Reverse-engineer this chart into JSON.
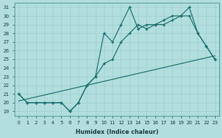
{
  "xlabel": "Humidex (Indice chaleur)",
  "bg_color": "#b2dede",
  "line_color": "#1a6e6e",
  "xlim": [
    -0.5,
    23.5
  ],
  "ylim": [
    18.5,
    31.5
  ],
  "xticks": [
    0,
    1,
    2,
    3,
    4,
    5,
    6,
    7,
    8,
    9,
    10,
    11,
    12,
    13,
    14,
    15,
    16,
    17,
    18,
    19,
    20,
    21,
    22,
    23
  ],
  "yticks": [
    19,
    20,
    21,
    22,
    23,
    24,
    25,
    26,
    27,
    28,
    29,
    30,
    31
  ],
  "series1_x": [
    0,
    1,
    2,
    3,
    4,
    5,
    6,
    7,
    8,
    9,
    10,
    11,
    12,
    13,
    14,
    15,
    16,
    17,
    18,
    19,
    20,
    21,
    22,
    23
  ],
  "series1_y": [
    21,
    20,
    20,
    20,
    20,
    20,
    19,
    20,
    22,
    23,
    28,
    27,
    29,
    31,
    28.5,
    29,
    29,
    29.5,
    30,
    30,
    31,
    28,
    26.5,
    25
  ],
  "series2_x": [
    0,
    1,
    2,
    3,
    4,
    5,
    6,
    7,
    8,
    9,
    10,
    11,
    12,
    13,
    14,
    15,
    16,
    17,
    18,
    19,
    20,
    21,
    22,
    23
  ],
  "series2_y": [
    21,
    20,
    20,
    20,
    20,
    20,
    19,
    20,
    22,
    23,
    24.5,
    25,
    27,
    28,
    29,
    28.5,
    29,
    29,
    29.5,
    30,
    30,
    28,
    26.5,
    25
  ],
  "series3_x": [
    0,
    23
  ],
  "series3_y": [
    20.2,
    25.4
  ]
}
